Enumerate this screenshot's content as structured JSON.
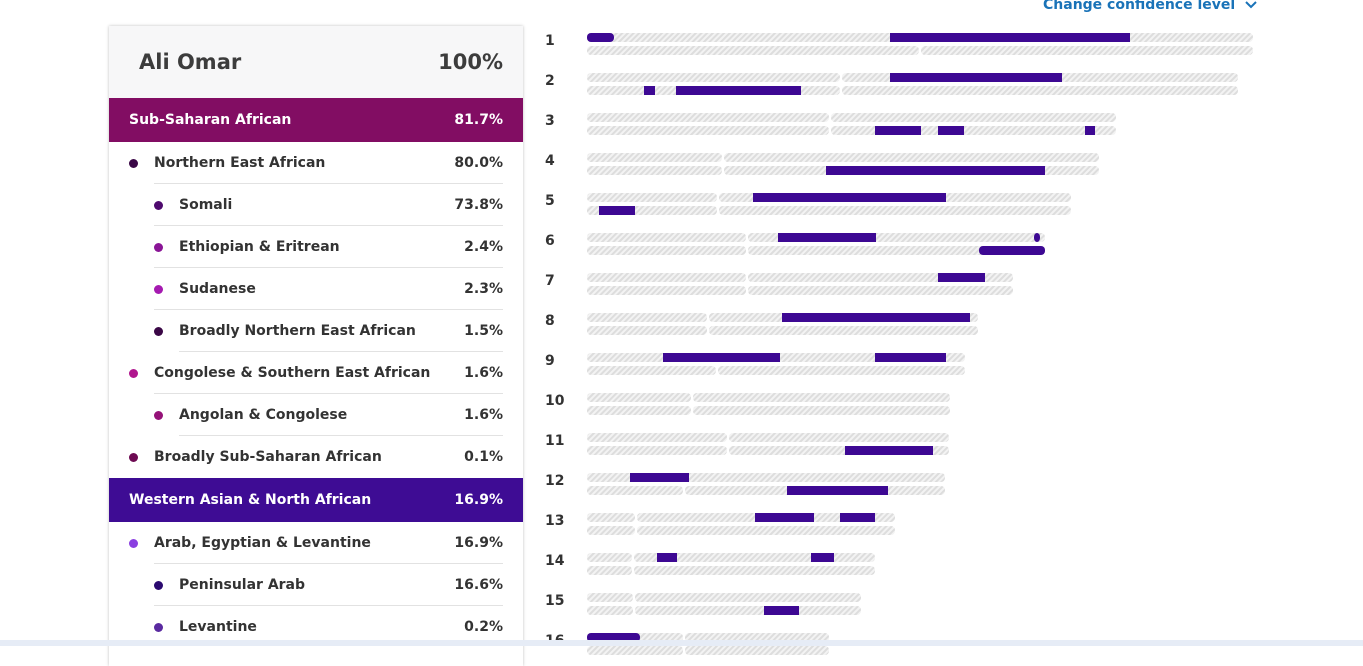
{
  "header": {
    "confidence_label": "Change confidence level",
    "chevron_icon": "chevron-down-icon"
  },
  "panel": {
    "person_name": "Ali Omar",
    "total_percent": "100%"
  },
  "colors": {
    "sub_saharan": "#820d63",
    "western_asian": "#3e0c94",
    "segment": "#3d0893",
    "stripe_a": "#dddddd",
    "stripe_b": "#f3f3f3"
  },
  "regions": [
    {
      "label": "Sub-Saharan African",
      "percent": "81.7%",
      "color": "#820d63",
      "rows": [
        {
          "label": "Northern East African",
          "percent": "80.0%",
          "level": 1,
          "dot": "#3a0746"
        },
        {
          "label": "Somali",
          "percent": "73.8%",
          "level": 2,
          "dot": "#4e0a6e"
        },
        {
          "label": "Ethiopian & Eritrean",
          "percent": "2.4%",
          "level": 2,
          "dot": "#8a1596"
        },
        {
          "label": "Sudanese",
          "percent": "2.3%",
          "level": 2,
          "dot": "#a51ab0"
        },
        {
          "label": "Broadly Northern East African",
          "percent": "1.5%",
          "level": 2,
          "dot": "#3a0746"
        },
        {
          "label": "Congolese & Southern East African",
          "percent": "1.6%",
          "level": 1,
          "dot": "#b0168e"
        },
        {
          "label": "Angolan & Congolese",
          "percent": "1.6%",
          "level": 2,
          "dot": "#951278"
        },
        {
          "label": "Broadly Sub-Saharan African",
          "percent": "0.1%",
          "level": 1,
          "dot": "#6d0a52"
        }
      ]
    },
    {
      "label": "Western Asian & North African",
      "percent": "16.9%",
      "color": "#3e0c94",
      "rows": [
        {
          "label": "Arab, Egyptian & Levantine",
          "percent": "16.9%",
          "level": 1,
          "dot": "#8a3fe0"
        },
        {
          "label": "Peninsular Arab",
          "percent": "16.6%",
          "level": 2,
          "dot": "#2b0a70"
        },
        {
          "label": "Levantine",
          "percent": "0.2%",
          "level": 2,
          "dot": "#5a2aa0"
        }
      ]
    }
  ],
  "chromosomes": [
    {
      "label": "1",
      "length": 1.0,
      "centromere": 0.5,
      "segs_top": [
        [
          0.0,
          0.04
        ],
        [
          0.455,
          0.5
        ],
        [
          0.5,
          0.815
        ]
      ],
      "segs_bottom": []
    },
    {
      "label": "2",
      "length": 0.978,
      "centromere": 0.39,
      "segs_top": [
        [
          0.465,
          0.73
        ]
      ],
      "segs_bottom": [
        [
          0.087,
          0.104
        ],
        [
          0.137,
          0.329
        ]
      ]
    },
    {
      "label": "3",
      "length": 0.795,
      "centromere": 0.46,
      "segs_top": [],
      "segs_bottom": [
        [
          0.545,
          0.632
        ],
        [
          0.663,
          0.712
        ],
        [
          0.942,
          0.96
        ]
      ]
    },
    {
      "label": "4",
      "length": 0.769,
      "centromere": 0.265,
      "segs_top": [],
      "segs_bottom": [
        [
          0.466,
          0.894
        ]
      ]
    },
    {
      "label": "5",
      "length": 0.727,
      "centromere": 0.27,
      "segs_top": [
        [
          0.344,
          0.742
        ]
      ],
      "segs_bottom": [
        [
          0.025,
          0.1
        ]
      ]
    },
    {
      "label": "6",
      "length": 0.688,
      "centromere": 0.35,
      "segs_top": [
        [
          0.418,
          0.63
        ],
        [
          0.975,
          0.99
        ]
      ],
      "segs_bottom": [
        [
          0.856,
          1.0
        ]
      ]
    },
    {
      "label": "7",
      "length": 0.639,
      "centromere": 0.375,
      "segs_top": [
        [
          0.825,
          0.935
        ]
      ],
      "segs_bottom": []
    },
    {
      "label": "8",
      "length": 0.587,
      "centromere": 0.31,
      "segs_top": [
        [
          0.498,
          0.98
        ]
      ],
      "segs_bottom": []
    },
    {
      "label": "9",
      "length": 0.567,
      "centromere": 0.345,
      "segs_top": [
        [
          0.2,
          0.348
        ],
        [
          0.348,
          0.51
        ],
        [
          0.762,
          0.95
        ]
      ],
      "segs_bottom": []
    },
    {
      "label": "10",
      "length": 0.545,
      "centromere": 0.29,
      "segs_top": [],
      "segs_bottom": []
    },
    {
      "label": "11",
      "length": 0.543,
      "centromere": 0.39,
      "segs_top": [],
      "segs_bottom": [
        [
          0.712,
          0.955
        ]
      ]
    },
    {
      "label": "12",
      "length": 0.537,
      "centromere": 0.27,
      "segs_top": [
        [
          0.12,
          0.265
        ],
        [
          0.265,
          0.285
        ]
      ],
      "segs_bottom": [
        [
          0.56,
          0.84
        ]
      ]
    },
    {
      "label": "13",
      "length": 0.462,
      "centromere": 0.16,
      "segs_top": [
        [
          0.547,
          0.736
        ],
        [
          0.821,
          0.935
        ]
      ],
      "segs_bottom": []
    },
    {
      "label": "14",
      "length": 0.433,
      "centromere": 0.16,
      "segs_top": [
        [
          0.243,
          0.313
        ],
        [
          0.778,
          0.858
        ]
      ],
      "segs_bottom": []
    },
    {
      "label": "15",
      "length": 0.412,
      "centromere": 0.17,
      "segs_top": [],
      "segs_bottom": [
        [
          0.646,
          0.774
        ]
      ]
    },
    {
      "label": "16",
      "length": 0.363,
      "centromere": 0.4,
      "segs_top": [
        [
          0.0,
          0.22
        ]
      ],
      "segs_bottom": []
    }
  ]
}
